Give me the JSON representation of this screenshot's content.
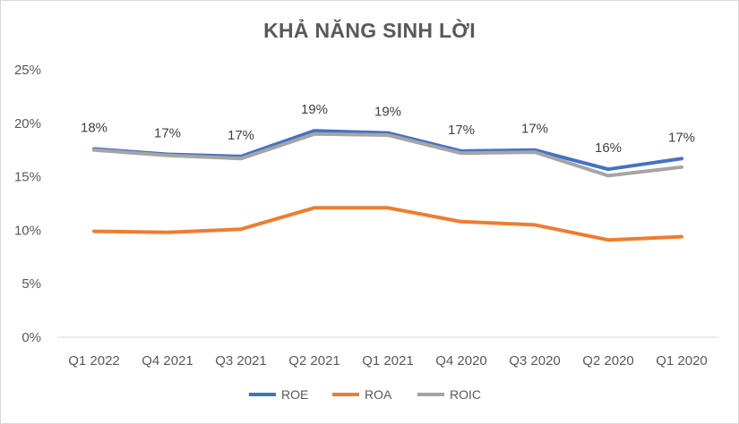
{
  "chart_data": {
    "type": "line",
    "title": "KHẢ NĂNG SINH LỜI",
    "categories": [
      "Q1 2022",
      "Q4 2021",
      "Q3 2021",
      "Q2 2021",
      "Q1 2021",
      "Q4 2020",
      "Q3 2020",
      "Q2 2020",
      "Q1 2020"
    ],
    "y_ticks": [
      "0%",
      "5%",
      "10%",
      "15%",
      "20%",
      "25%"
    ],
    "ylim": [
      0,
      25
    ],
    "grid": false,
    "legend_position": "bottom",
    "series": [
      {
        "name": "ROE",
        "color": "#4472c4",
        "values": [
          17.6,
          17.1,
          16.9,
          19.3,
          19.1,
          17.4,
          17.5,
          15.7,
          16.7
        ],
        "data_labels": [
          "18%",
          "17%",
          "17%",
          "19%",
          "19%",
          "17%",
          "17%",
          "16%",
          "17%"
        ]
      },
      {
        "name": "ROA",
        "color": "#ed7d31",
        "values": [
          9.9,
          9.8,
          10.1,
          12.1,
          12.1,
          10.8,
          10.5,
          9.1,
          9.4
        ]
      },
      {
        "name": "ROIC",
        "color": "#a5a5a5",
        "values": [
          17.5,
          17.0,
          16.7,
          19.0,
          18.9,
          17.2,
          17.3,
          15.1,
          15.9
        ]
      }
    ]
  }
}
